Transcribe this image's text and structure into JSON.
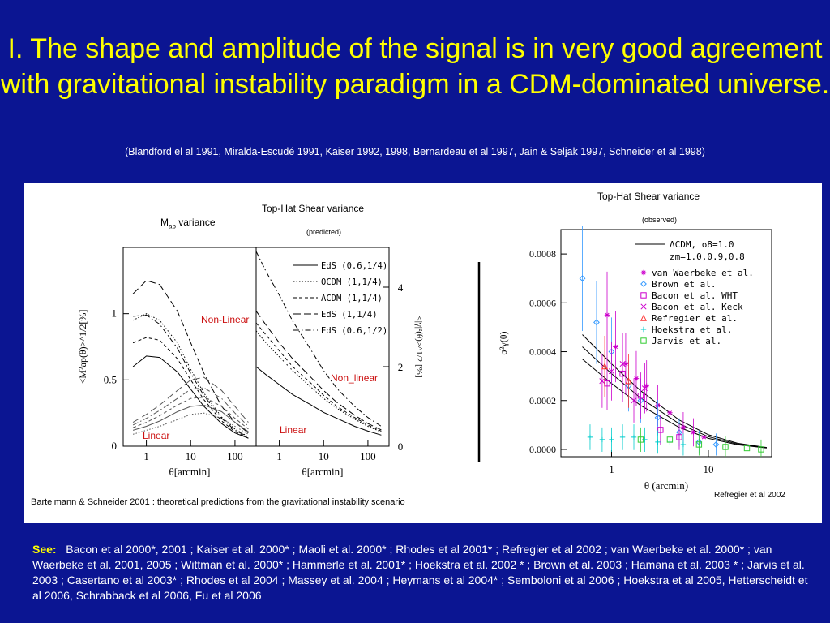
{
  "title": "I.  The shape and amplitude of the signal is  in very good agreement with gravitational instability paradigm in a CDM-dominated universe.",
  "citation": "(Blandford el al 1991, Miralda-Escudé 1991, Kaiser 1992, 1998,  Bernardeau et al 1997, Jain & Seljak 1997, Schneider et al 1998)",
  "left_figure": {
    "map_label_prefix": "M",
    "map_label_sub": "ap",
    "map_label_suffix": " variance",
    "tophat_title": "Top-Hat  Shear variance",
    "tophat_sub": "(predicted)",
    "nonlinear_left": "Non-Linear",
    "nonlinear_right": "Non_linear",
    "linear_left": "Linear",
    "linear_right": "Linear",
    "caption": "Bartelmann & Schneider 2001 :  theoretical predictions from the gravitational instability scenario",
    "left_ylabel": "<M²ap(θ)>^1/2[%]",
    "right_ylabel": "<|γ|²(θ)>^1/2 [%]",
    "xlabel": "θ[arcmin]"
  },
  "right_figure": {
    "title": "Top-Hat  Shear variance",
    "sub": "(observed)",
    "credit": "Refregier et al 2002",
    "ylabel": "σ²γ(θ)",
    "xlabel": "θ  (arcmin)",
    "model_label_1": "ΛCDM,  σ8=1.0",
    "model_label_2": "zm=1.0,0.9,0.8"
  },
  "see_label": "See:",
  "see_text": "Bacon et al 2000*,  2001  ; Kaiser et al. 2000* ; Maoli et al. 2000* ; Rhodes et al  2001* ; Refregier et al  2002  ; van Waerbeke et al. 2000* ; van Waerbeke et al. 2001, 2005  ;  Wittman et al. 2000* ; Hammerle et al. 2001* ;  Hoekstra et al. 2002 * ;  Brown et al. 2003  ;  Hamana et al. 2003 *  ; Jarvis et al. 2003  ; Casertano et al 2003* ; Rhodes et al 2004  ;  Massey et al. 2004  ;  Heymans et al 2004*  ; Semboloni et al 2006  ;  Hoekstra et al 2005, Hetterscheidt et al 2006, Schrabback et al 2006, Fu et al 2006",
  "chart_data": [
    {
      "type": "line",
      "panel": "Map variance",
      "xlabel": "θ[arcmin]",
      "ylabel": "<M²ap(θ)>^1/2[%]",
      "xscale": "log",
      "xlim": [
        0.3,
        300
      ],
      "ylim": [
        0,
        1.5
      ],
      "xticks": [
        "1",
        "10",
        "100"
      ],
      "yticks": [
        "0",
        "0.5",
        "1"
      ],
      "x": [
        0.5,
        1,
        2,
        5,
        10,
        20,
        50,
        100,
        200
      ],
      "series": [
        {
          "style": "long-dash",
          "group": "non-linear",
          "values": [
            1.15,
            1.25,
            1.22,
            1.02,
            0.78,
            0.55,
            0.3,
            0.18,
            0.1
          ]
        },
        {
          "style": "dot",
          "group": "non-linear",
          "values": [
            0.95,
            1.0,
            0.95,
            0.78,
            0.58,
            0.4,
            0.22,
            0.13,
            0.07
          ]
        },
        {
          "style": "dash-dot",
          "group": "non-linear",
          "values": [
            0.98,
            0.99,
            0.92,
            0.74,
            0.55,
            0.38,
            0.21,
            0.12,
            0.07
          ]
        },
        {
          "style": "short-dash",
          "group": "non-linear",
          "values": [
            0.78,
            0.82,
            0.8,
            0.66,
            0.5,
            0.35,
            0.19,
            0.11,
            0.06
          ]
        },
        {
          "style": "solid",
          "group": "non-linear",
          "values": [
            0.6,
            0.68,
            0.67,
            0.56,
            0.43,
            0.3,
            0.17,
            0.1,
            0.06
          ]
        },
        {
          "style": "long-dash",
          "group": "linear",
          "values": [
            0.18,
            0.24,
            0.31,
            0.42,
            0.5,
            0.52,
            0.42,
            0.3,
            0.18
          ]
        },
        {
          "style": "dash-dot",
          "group": "linear",
          "values": [
            0.16,
            0.21,
            0.27,
            0.36,
            0.43,
            0.44,
            0.36,
            0.25,
            0.15
          ]
        },
        {
          "style": "short-dash",
          "group": "linear",
          "values": [
            0.14,
            0.18,
            0.23,
            0.31,
            0.36,
            0.37,
            0.3,
            0.21,
            0.13
          ]
        },
        {
          "style": "solid",
          "group": "linear",
          "values": [
            0.12,
            0.15,
            0.19,
            0.26,
            0.3,
            0.31,
            0.26,
            0.18,
            0.11
          ]
        },
        {
          "style": "dot",
          "group": "linear",
          "values": [
            0.09,
            0.12,
            0.15,
            0.2,
            0.24,
            0.25,
            0.21,
            0.15,
            0.09
          ]
        }
      ]
    },
    {
      "type": "line",
      "panel": "Top-Hat shear variance (predicted)",
      "xlabel": "θ[arcmin]",
      "ylabel": "<|γ|²(θ)>^1/2 [%]",
      "xscale": "log",
      "xlim": [
        0.3,
        300
      ],
      "ylim": [
        0,
        5
      ],
      "xticks": [
        "1",
        "10",
        "100"
      ],
      "yticks": [
        "0",
        "2",
        "4"
      ],
      "legend": [
        "EdS (0.6,1/4)",
        "OCDM (1,1/4)",
        "ΛCDM (1,1/4)",
        "EdS (1,1/4)",
        "EdS (0.6,1/2)"
      ],
      "x": [
        0.3,
        0.5,
        1,
        2,
        5,
        10,
        20,
        50,
        100,
        200
      ],
      "series": [
        {
          "name": "EdS (0.6,1/4)",
          "style": "solid",
          "values": [
            2.0,
            1.8,
            1.55,
            1.3,
            1.05,
            0.85,
            0.7,
            0.5,
            0.38,
            0.28
          ]
        },
        {
          "name": "OCDM (1,1/4)",
          "style": "dot",
          "values": [
            2.9,
            2.6,
            2.25,
            1.9,
            1.5,
            1.2,
            0.95,
            0.68,
            0.5,
            0.36
          ]
        },
        {
          "name": "ΛCDM (1,1/4)",
          "style": "short-dash",
          "values": [
            3.1,
            2.8,
            2.4,
            2.0,
            1.6,
            1.28,
            1.0,
            0.72,
            0.53,
            0.38
          ]
        },
        {
          "name": "EdS (1,1/4)",
          "style": "long-dash",
          "values": [
            3.4,
            3.05,
            2.6,
            2.2,
            1.75,
            1.4,
            1.1,
            0.78,
            0.57,
            0.41
          ]
        },
        {
          "name": "EdS (0.6,1/2)",
          "style": "dash-dot",
          "values": [
            4.9,
            4.4,
            3.8,
            3.15,
            2.45,
            1.9,
            1.45,
            1.0,
            0.72,
            0.5
          ]
        }
      ]
    },
    {
      "type": "scatter",
      "panel": "Top-Hat shear variance (observed)",
      "xlabel": "θ  (arcmin)",
      "ylabel": "σ²γ(θ)",
      "xscale": "log",
      "xlim": [
        0.3,
        45
      ],
      "ylim": [
        0,
        0.0009
      ],
      "xticks": [
        "1",
        "10"
      ],
      "yticks": [
        "0.0000",
        "0.0002",
        "0.0004",
        "0.0006",
        "0.0008"
      ],
      "models": {
        "name": "ΛCDM,  σ8=1.0, zm=1.0,0.9,0.8",
        "x": [
          0.5,
          1,
          2,
          5,
          10,
          20,
          40
        ],
        "curves": [
          [
            0.00047,
            0.00035,
            0.00024,
            0.00012,
            6e-05,
            2.5e-05,
            8e-06
          ],
          [
            0.00042,
            0.00031,
            0.00021,
            0.000105,
            5.2e-05,
            2.2e-05,
            7e-06
          ],
          [
            0.00037,
            0.00027,
            0.00018,
            9e-05,
            4.5e-05,
            1.9e-05,
            6e-06
          ]
        ]
      },
      "series": [
        {
          "name": "van Waerbeke et al.",
          "marker": "asterisk",
          "color": "#cc00cc",
          "x": [
            0.9,
            1.1,
            1.4,
            1.8,
            2.3,
            3.0,
            4.0,
            5.5,
            7.0,
            9.0
          ],
          "y": [
            0.00055,
            0.00042,
            0.00035,
            0.00029,
            0.00026,
            0.00018,
            0.00015,
            9e-05,
            7e-05,
            5e-05
          ]
        },
        {
          "name": "Brown et al.",
          "marker": "diamond",
          "color": "#3399ff",
          "x": [
            0.5,
            0.7,
            1.0,
            1.5,
            2.0,
            3.0,
            5.0,
            8.0,
            12.0
          ],
          "y": [
            0.0007,
            0.00052,
            0.0004,
            0.00026,
            0.0002,
            0.00013,
            7e-05,
            3e-05,
            2e-05
          ]
        },
        {
          "name": "Bacon et al. WHT",
          "marker": "square",
          "color": "#cc00cc",
          "x": [
            0.9,
            1.3,
            2.0,
            3.2,
            5.0
          ],
          "y": [
            0.00027,
            0.00031,
            0.00022,
            8e-05,
            5e-05
          ]
        },
        {
          "name": "Bacon et al. Keck",
          "marker": "cross",
          "color": "#cc00cc",
          "x": [
            0.8,
            1.0,
            1.3,
            1.7,
            2.2
          ],
          "y": [
            0.00028,
            0.00032,
            0.00035,
            0.0002,
            0.00025
          ]
        },
        {
          "name": "Refregier et al.",
          "marker": "triangle",
          "color": "#ff3333",
          "x": [
            0.85,
            1.5
          ],
          "y": [
            0.00034,
            0.00028
          ]
        },
        {
          "name": "Hoekstra et al.",
          "marker": "plus",
          "color": "#00cccc",
          "x": [
            0.6,
            0.8,
            1.0,
            1.3,
            1.7,
            2.2,
            3.0,
            4.0,
            5.5
          ],
          "y": [
            5e-05,
            4e-05,
            4e-05,
            5e-05,
            5e-05,
            4e-05,
            3e-05,
            3e-05,
            2e-05
          ]
        },
        {
          "name": "Jarvis et al.",
          "marker": "square",
          "color": "#33cc33",
          "x": [
            2.0,
            4.0,
            8.0,
            15.0,
            25.0,
            35.0
          ],
          "y": [
            4e-05,
            4e-05,
            2e-05,
            1e-05,
            5e-06,
            0.0
          ]
        }
      ]
    }
  ]
}
